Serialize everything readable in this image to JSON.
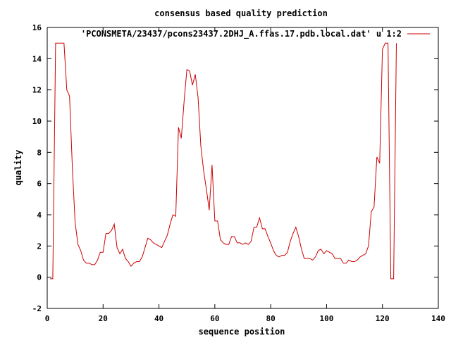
{
  "colors": {
    "series": "#cc0000",
    "axis": "#000000",
    "background": "#ffffff"
  },
  "chart_data": {
    "type": "line",
    "title": "consensus based quality prediction",
    "xlabel": "sequence position",
    "ylabel": "quality",
    "xlim": [
      0,
      140
    ],
    "ylim": [
      -2,
      16
    ],
    "xticks": [
      0,
      20,
      40,
      60,
      80,
      100,
      120,
      140
    ],
    "yticks": [
      -2,
      0,
      2,
      4,
      6,
      8,
      10,
      12,
      14,
      16
    ],
    "grid": false,
    "legend": "top-right",
    "series": [
      {
        "name": "'PCONSMETA/23437/pcons23437.2DHJ_A.ffas.17.pdb.local.dat' u 1:2",
        "x": [
          1,
          2,
          3,
          4,
          5,
          6,
          7,
          8,
          9,
          10,
          11,
          12,
          13,
          14,
          15,
          16,
          17,
          18,
          19,
          20,
          21,
          22,
          23,
          24,
          25,
          26,
          27,
          28,
          29,
          30,
          31,
          32,
          33,
          34,
          35,
          36,
          37,
          38,
          39,
          40,
          41,
          42,
          43,
          44,
          45,
          46,
          47,
          48,
          49,
          50,
          51,
          52,
          53,
          54,
          55,
          56,
          57,
          58,
          59,
          60,
          61,
          62,
          63,
          64,
          65,
          66,
          67,
          68,
          69,
          70,
          71,
          72,
          73,
          74,
          75,
          76,
          77,
          78,
          79,
          80,
          81,
          82,
          83,
          84,
          85,
          86,
          87,
          88,
          89,
          90,
          91,
          92,
          93,
          94,
          95,
          96,
          97,
          98,
          99,
          100,
          101,
          102,
          103,
          104,
          105,
          106,
          107,
          108,
          109,
          110,
          111,
          112,
          113,
          114,
          115,
          116,
          117,
          118,
          119,
          120,
          121,
          122,
          123,
          124,
          125
        ],
        "y": [
          -0.1,
          -0.1,
          15.0,
          15.0,
          15.0,
          15.0,
          12.0,
          11.6,
          7.0,
          3.5,
          2.1,
          1.7,
          1.1,
          0.9,
          0.9,
          0.8,
          0.8,
          1.1,
          1.6,
          1.6,
          2.8,
          2.8,
          3.0,
          3.4,
          1.9,
          1.5,
          1.8,
          1.2,
          1.0,
          0.7,
          0.9,
          1.0,
          1.0,
          1.3,
          1.9,
          2.5,
          2.4,
          2.2,
          2.1,
          2.0,
          1.9,
          2.3,
          2.7,
          3.4,
          4.0,
          3.9,
          9.6,
          8.9,
          11.3,
          13.3,
          13.2,
          12.3,
          13.0,
          11.5,
          8.4,
          6.8,
          5.6,
          4.3,
          7.2,
          3.6,
          3.6,
          2.4,
          2.2,
          2.1,
          2.1,
          2.6,
          2.6,
          2.2,
          2.2,
          2.1,
          2.2,
          2.1,
          2.3,
          3.2,
          3.2,
          3.8,
          3.1,
          3.1,
          2.6,
          2.2,
          1.7,
          1.4,
          1.3,
          1.4,
          1.4,
          1.6,
          2.3,
          2.8,
          3.2,
          2.6,
          1.8,
          1.2,
          1.2,
          1.2,
          1.1,
          1.3,
          1.7,
          1.8,
          1.5,
          1.7,
          1.6,
          1.5,
          1.2,
          1.2,
          1.2,
          0.9,
          0.9,
          1.1,
          1.0,
          1.0,
          1.1,
          1.3,
          1.4,
          1.5,
          2.0,
          4.2,
          4.5,
          7.7,
          7.3,
          14.6,
          15.0,
          15.0,
          -0.1,
          -0.1,
          15.0
        ]
      }
    ]
  }
}
